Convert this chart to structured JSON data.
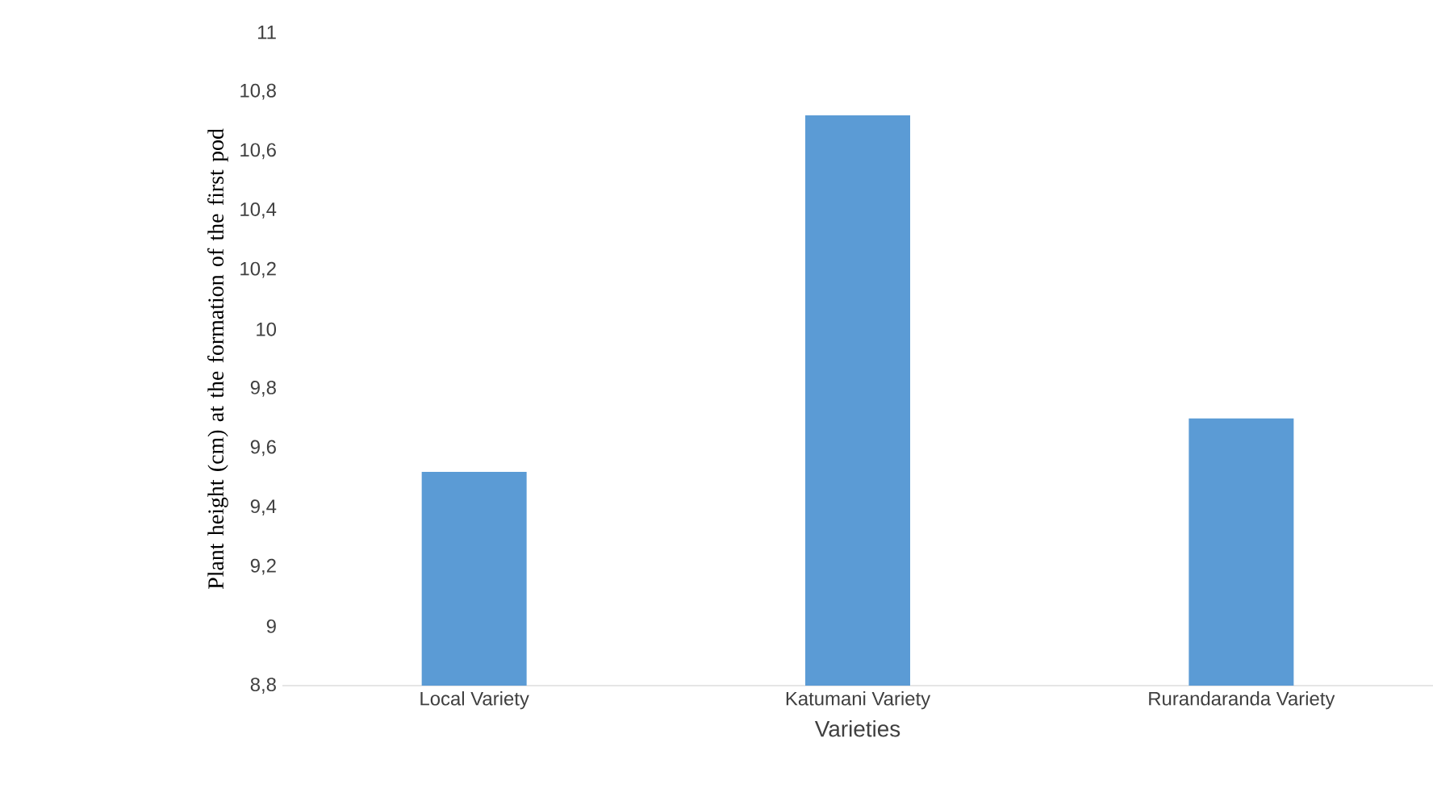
{
  "chart_data": {
    "type": "bar",
    "xlabel": "Varieties",
    "ylabel": "Plant height (cm) at the formation of the first pod",
    "categories": [
      "Local Variety",
      "Katumani Variety",
      "Rurandaranda Variety"
    ],
    "values": [
      9.52,
      10.72,
      9.7
    ],
    "color": "#5b9bd5",
    "ylim": [
      8.8,
      11
    ],
    "yticks": [
      {
        "value": 8.8,
        "label": "8,8"
      },
      {
        "value": 9,
        "label": "9"
      },
      {
        "value": 9.2,
        "label": "9,2"
      },
      {
        "value": 9.4,
        "label": "9,4"
      },
      {
        "value": 9.6,
        "label": "9,6"
      },
      {
        "value": 9.8,
        "label": "9,8"
      },
      {
        "value": 10,
        "label": "10"
      },
      {
        "value": 10.2,
        "label": "10,2"
      },
      {
        "value": 10.4,
        "label": "10,4"
      },
      {
        "value": 10.6,
        "label": "10,6"
      },
      {
        "value": 10.8,
        "label": "10,8"
      },
      {
        "value": 11,
        "label": "11"
      }
    ],
    "tick_labels": true
  }
}
